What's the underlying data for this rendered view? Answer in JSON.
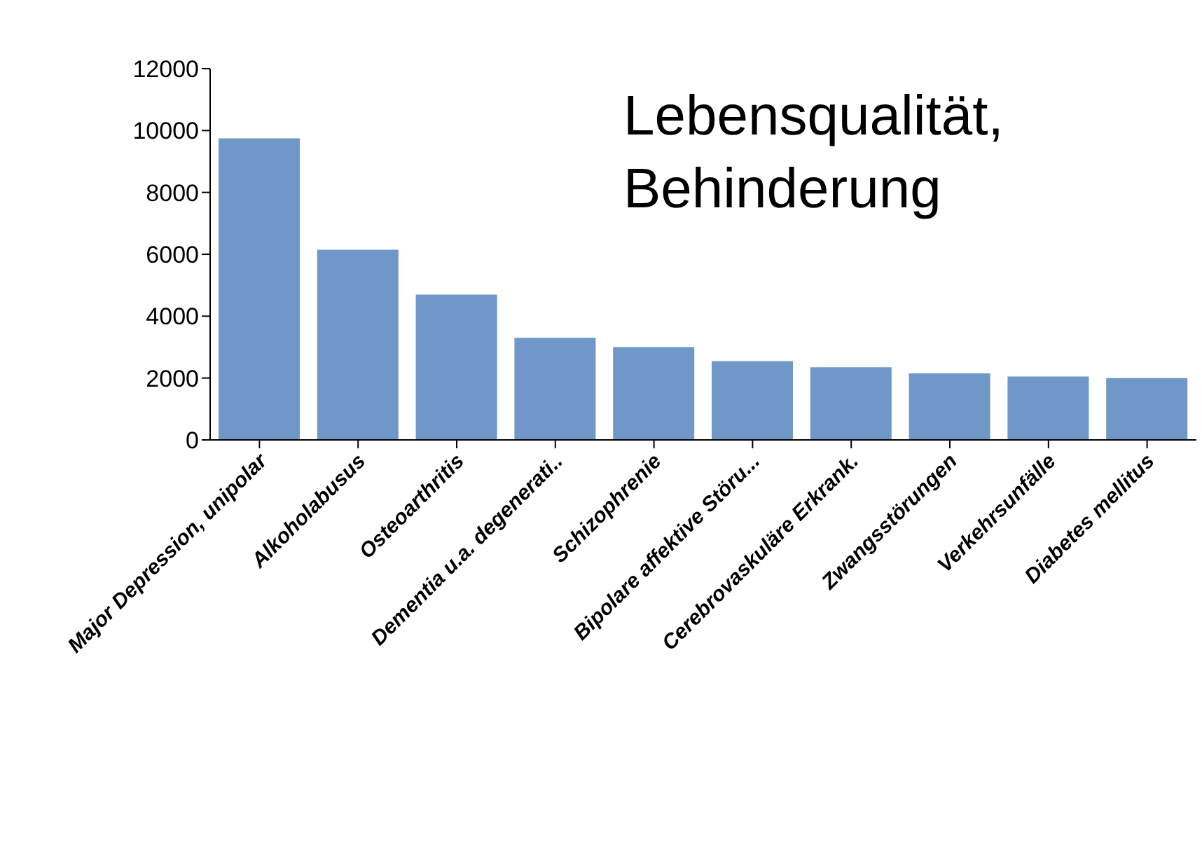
{
  "chart_data": {
    "type": "bar",
    "title": "Lebensqualität, Behinderung",
    "categories": [
      "Major Depression, unipolar",
      "Alkoholabusus",
      "Osteoarthritis",
      "Dementia u.a. degenerati..",
      "Schizophrenie",
      "Bipolare affektive Störu...",
      "Cerebrovaskuläre Erkrank.",
      "Zwangsstörungen",
      "Verkehrsunfälle",
      "Diabetes mellitus"
    ],
    "values": [
      9750,
      6150,
      4700,
      3300,
      3000,
      2550,
      2350,
      2150,
      2050,
      2000
    ],
    "color": "#6f97c8",
    "ylim": [
      0,
      12000
    ],
    "yticks": [
      0,
      2000,
      4000,
      6000,
      8000,
      10000,
      12000
    ],
    "grid": false,
    "legend": false
  }
}
